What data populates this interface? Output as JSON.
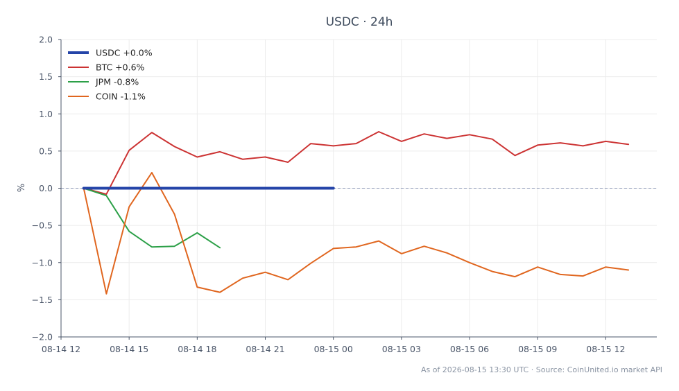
{
  "chart_data": {
    "type": "line",
    "title": "USDC · 24h",
    "ylabel": "%",
    "xlabel": "",
    "ylim": [
      -2.0,
      2.0
    ],
    "y_ticks": [
      2.0,
      1.5,
      1.0,
      0.5,
      0.0,
      -0.5,
      -1.0,
      -1.5,
      -2.0
    ],
    "y_tick_labels": [
      "2.0",
      "1.5",
      "1.0",
      "0.5",
      "0.0",
      "−0.5",
      "−1.0",
      "−1.5",
      "−2.0"
    ],
    "x_ticks": [
      "08-14 12",
      "08-14 15",
      "08-14 18",
      "08-14 21",
      "08-15 00",
      "08-15 03",
      "08-15 06",
      "08-15 09",
      "08-15 12"
    ],
    "x_start": "2026-08-14 12:00",
    "x_end": "2026-08-15 14:15",
    "grid": true,
    "zero_line": true,
    "legend_position": "top-left",
    "series": [
      {
        "name": "USDC +0.0%",
        "color": "#2444a8",
        "bold": true,
        "x": [
          "2026-08-14 13:00",
          "2026-08-15 00:00"
        ],
        "values": [
          0.0,
          0.0
        ]
      },
      {
        "name": "BTC +0.6%",
        "color": "#cc3333",
        "x": [
          "2026-08-14 13:00",
          "2026-08-14 14:00",
          "2026-08-14 15:00",
          "2026-08-14 16:00",
          "2026-08-14 17:00",
          "2026-08-14 18:00",
          "2026-08-14 19:00",
          "2026-08-14 20:00",
          "2026-08-14 21:00",
          "2026-08-14 22:00",
          "2026-08-14 23:00",
          "2026-08-15 00:00",
          "2026-08-15 01:00",
          "2026-08-15 02:00",
          "2026-08-15 03:00",
          "2026-08-15 04:00",
          "2026-08-15 05:00",
          "2026-08-15 06:00",
          "2026-08-15 07:00",
          "2026-08-15 08:00",
          "2026-08-15 09:00",
          "2026-08-15 10:00",
          "2026-08-15 11:00",
          "2026-08-15 12:00",
          "2026-08-15 13:00"
        ],
        "values": [
          0.0,
          -0.08,
          0.51,
          0.75,
          0.56,
          0.42,
          0.49,
          0.39,
          0.42,
          0.35,
          0.6,
          0.57,
          0.6,
          0.76,
          0.63,
          0.73,
          0.67,
          0.72,
          0.66,
          0.44,
          0.58,
          0.61,
          0.57,
          0.63,
          0.59
        ]
      },
      {
        "name": "JPM -0.8%",
        "color": "#2ca048",
        "x": [
          "2026-08-14 13:00",
          "2026-08-14 14:00",
          "2026-08-14 15:00",
          "2026-08-14 16:00",
          "2026-08-14 17:00",
          "2026-08-14 18:00",
          "2026-08-14 19:00"
        ],
        "values": [
          0.0,
          -0.1,
          -0.58,
          -0.79,
          -0.78,
          -0.6,
          -0.8
        ]
      },
      {
        "name": "COIN -1.1%",
        "color": "#e0661f",
        "x": [
          "2026-08-14 13:00",
          "2026-08-14 14:00",
          "2026-08-14 15:00",
          "2026-08-14 16:00",
          "2026-08-14 17:00",
          "2026-08-14 18:00",
          "2026-08-14 19:00",
          "2026-08-14 20:00",
          "2026-08-14 21:00",
          "2026-08-14 22:00",
          "2026-08-14 23:00",
          "2026-08-15 00:00",
          "2026-08-15 01:00",
          "2026-08-15 02:00",
          "2026-08-15 03:00",
          "2026-08-15 04:00",
          "2026-08-15 05:00",
          "2026-08-15 06:00",
          "2026-08-15 07:00",
          "2026-08-15 08:00",
          "2026-08-15 09:00",
          "2026-08-15 10:00",
          "2026-08-15 11:00",
          "2026-08-15 12:00",
          "2026-08-15 13:00"
        ],
        "values": [
          0.0,
          -1.42,
          -0.25,
          0.21,
          -0.35,
          -1.33,
          -1.4,
          -1.21,
          -1.13,
          -1.23,
          -1.01,
          -0.81,
          -0.79,
          -0.71,
          -0.88,
          -0.78,
          -0.87,
          -1.0,
          -1.12,
          -1.19,
          -1.06,
          -1.16,
          -1.18,
          -1.06,
          -1.1
        ]
      }
    ],
    "footer": "As of 2026-08-15 13:30 UTC · Source: CoinUnited.io market API"
  }
}
